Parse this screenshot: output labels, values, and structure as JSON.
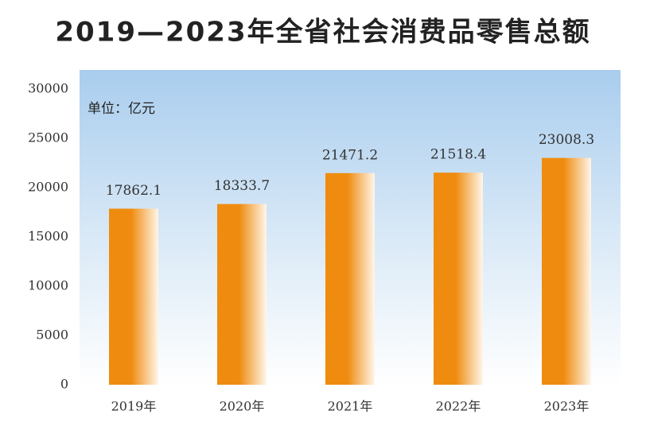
{
  "chart_data": {
    "type": "bar",
    "title": "2019—2023年全省社会消费品零售总额",
    "unit_note": "单位：亿元",
    "categories": [
      "2019年",
      "2020年",
      "2021年",
      "2022年",
      "2023年"
    ],
    "values": [
      17862.1,
      18333.7,
      21471.2,
      21518.4,
      23008.3
    ],
    "color": "#ef8c10",
    "ylim": [
      0,
      30000
    ],
    "yticks": [
      0,
      5000,
      10000,
      15000,
      20000,
      25000,
      30000
    ],
    "grid": false
  }
}
